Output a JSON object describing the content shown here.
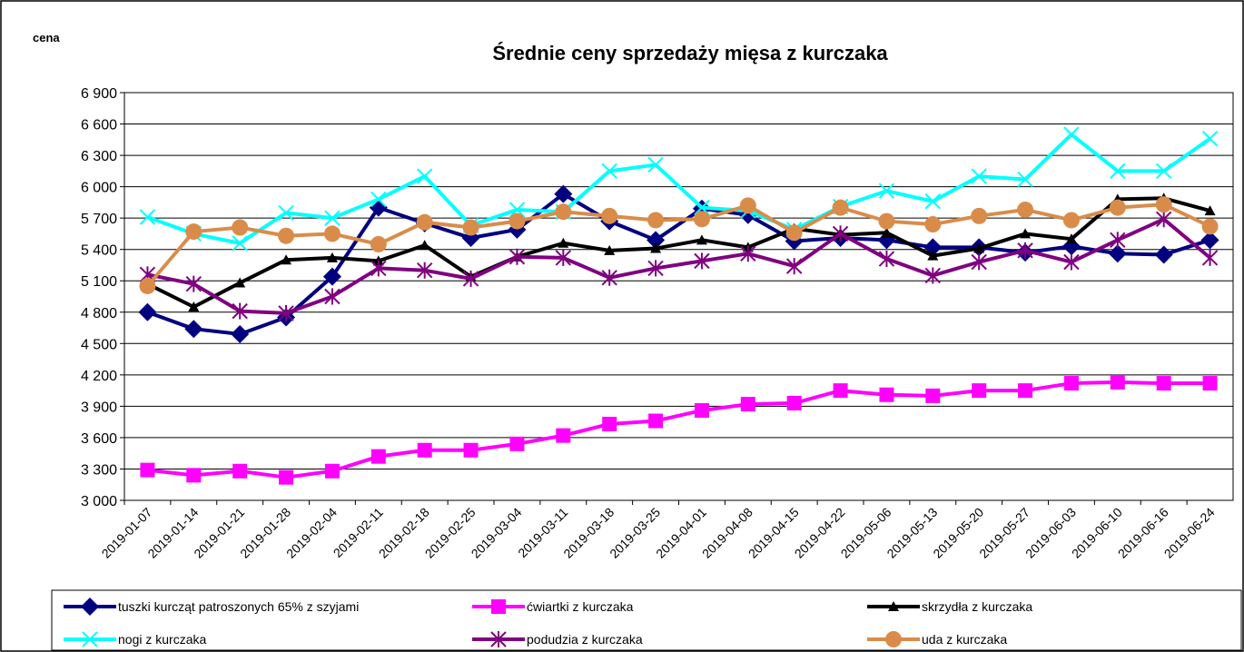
{
  "chart_data": {
    "type": "line",
    "title": "Średnie ceny sprzedaży mięsa z kurczaka",
    "y_label": "cena",
    "categories": [
      "2019-01-07",
      "2019-01-14",
      "2019-01-21",
      "2019-01-28",
      "2019-02-04",
      "2019-02-11",
      "2019-02-18",
      "2019-02-25",
      "2019-03-04",
      "2019-03-11",
      "2019-03-18",
      "2019-03-25",
      "2019-04-01",
      "2019-04-08",
      "2019-04-15",
      "2019-04-22",
      "2019-05-06",
      "2019-05-13",
      "2019-05-20",
      "2019-05-27",
      "2019-06-03",
      "2019-06-10",
      "2019-06-16",
      "2019-06-24"
    ],
    "ylim": [
      3000,
      6900
    ],
    "yticks": [
      {
        "value": 3000,
        "label": "3 000"
      },
      {
        "value": 3300,
        "label": "3 300"
      },
      {
        "value": 3600,
        "label": "3 600"
      },
      {
        "value": 3900,
        "label": "3 900"
      },
      {
        "value": 4200,
        "label": "4 200"
      },
      {
        "value": 4500,
        "label": "4 500"
      },
      {
        "value": 4800,
        "label": "4 800"
      },
      {
        "value": 5100,
        "label": "5 100"
      },
      {
        "value": 5400,
        "label": "5 400"
      },
      {
        "value": 5700,
        "label": "5 700"
      },
      {
        "value": 6000,
        "label": "6 000"
      },
      {
        "value": 6300,
        "label": "6 300"
      },
      {
        "value": 6600,
        "label": "6 600"
      },
      {
        "value": 6900,
        "label": "6 900"
      }
    ],
    "grid": true,
    "legend": "bottom",
    "series": [
      {
        "name": "tuszki kurcząt patroszonych 65% z szyjami",
        "color": "#000080",
        "marker": "diamond",
        "values": [
          4800,
          4640,
          4590,
          4750,
          5140,
          5800,
          5650,
          5510,
          5590,
          5930,
          5670,
          5490,
          5790,
          5730,
          5480,
          5510,
          5490,
          5420,
          5420,
          5370,
          5430,
          5360,
          5350,
          5490
        ]
      },
      {
        "name": "ćwiartki z kurczaka",
        "color": "#ff00ff",
        "marker": "square",
        "values": [
          3290,
          3240,
          3280,
          3220,
          3280,
          3420,
          3480,
          3480,
          3540,
          3620,
          3730,
          3760,
          3860,
          3920,
          3930,
          4050,
          4010,
          4000,
          4050,
          4050,
          4120,
          4130,
          4120,
          4120
        ]
      },
      {
        "name": "skrzydła z kurczaka",
        "color": "#000000",
        "marker": "triangle",
        "values": [
          5070,
          4850,
          5080,
          5300,
          5320,
          5290,
          5440,
          5140,
          5330,
          5460,
          5390,
          5410,
          5490,
          5420,
          5600,
          5540,
          5560,
          5340,
          5410,
          5550,
          5500,
          5880,
          5890,
          5770
        ]
      },
      {
        "name": "nogi z kurczaka",
        "color": "#00ffff",
        "marker": "x",
        "values": [
          5710,
          5550,
          5460,
          5750,
          5700,
          5880,
          6100,
          5630,
          5780,
          5760,
          6150,
          6210,
          5800,
          5770,
          5590,
          5810,
          5960,
          5860,
          6100,
          6070,
          6500,
          6150,
          6150,
          6460
        ]
      },
      {
        "name": "podudzia z kurczaka",
        "color": "#800080",
        "marker": "star",
        "values": [
          5160,
          5070,
          4810,
          4790,
          4950,
          5220,
          5200,
          5120,
          5330,
          5320,
          5130,
          5220,
          5290,
          5360,
          5240,
          5550,
          5310,
          5150,
          5280,
          5390,
          5280,
          5490,
          5690,
          5320
        ]
      },
      {
        "name": "uda z kurczaka",
        "color": "#d98c4a",
        "marker": "circle",
        "values": [
          5050,
          5570,
          5610,
          5530,
          5550,
          5450,
          5660,
          5610,
          5670,
          5760,
          5720,
          5680,
          5690,
          5820,
          5560,
          5800,
          5670,
          5640,
          5720,
          5780,
          5680,
          5800,
          5830,
          5620
        ]
      }
    ]
  }
}
